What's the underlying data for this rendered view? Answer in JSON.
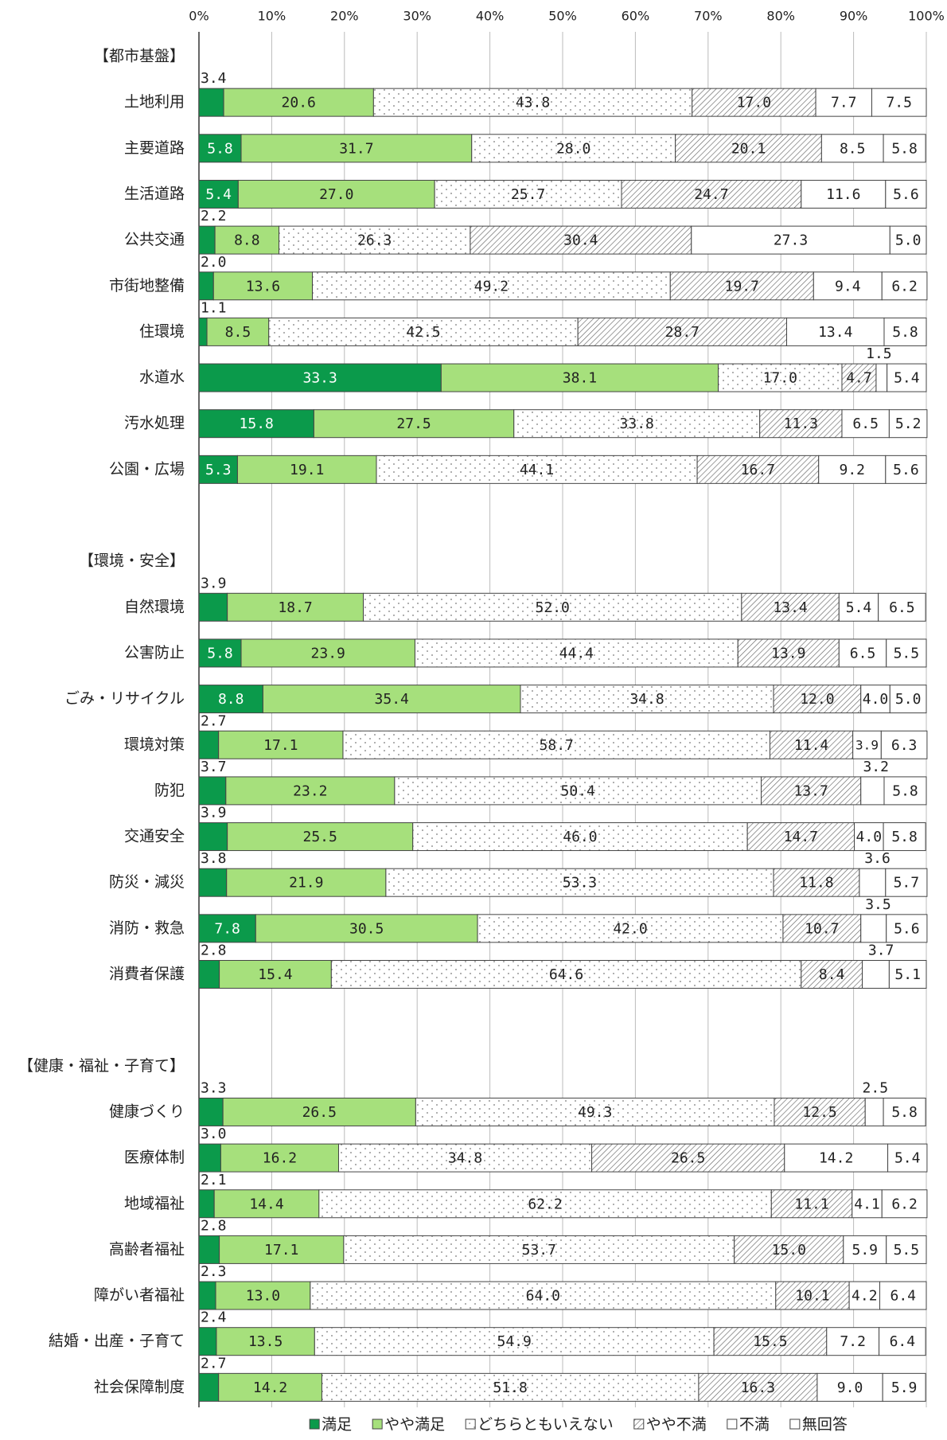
{
  "chart_data": {
    "type": "stacked-bar-horizontal",
    "categories": [
      "【都市基盤】",
      "土地利用",
      "主要道路",
      "生活道路",
      "公共交通",
      "市街地整備",
      "住環境",
      "水道水",
      "汚水処理",
      "公園・広場",
      null,
      "【環境・安全】",
      "自然環境",
      "公害防止",
      "ごみ・リサイクル",
      "環境対策",
      "防犯",
      "交通安全",
      "防災・減災",
      "消防・救急",
      "消費者保護",
      null,
      "【健康・福祉・子育て】",
      "健康づくり",
      "医療体制",
      "地域福祉",
      "高齢者福祉",
      "障がい者福祉",
      "結婚・出産・子育て",
      "社会保障制度"
    ],
    "series": [
      {
        "name": "満足",
        "color": "#0b9a4b",
        "pattern": "solid",
        "values": [
          null,
          3.4,
          5.8,
          5.4,
          2.2,
          2.0,
          1.1,
          33.3,
          15.8,
          5.3,
          null,
          null,
          3.9,
          5.8,
          8.8,
          2.7,
          3.7,
          3.9,
          3.8,
          7.8,
          2.8,
          null,
          null,
          3.3,
          3.0,
          2.1,
          2.8,
          2.3,
          2.4,
          2.7
        ],
        "value_labels": [
          null,
          "3.4",
          "5.8",
          "5.4",
          "2.2",
          "2.0",
          "1.1",
          "33.3",
          "15.8",
          "5.3",
          null,
          null,
          "3.9",
          "5.8",
          "8.8",
          "2.7",
          "3.7",
          "3.9",
          "3.8",
          "7.8",
          "2.8",
          null,
          null,
          "3.3",
          "3.0",
          "2.1",
          "2.8",
          "2.3",
          "2.4",
          "2.7"
        ]
      },
      {
        "name": "やや満足",
        "color": "#a6e07c",
        "pattern": "solid",
        "values": [
          null,
          20.6,
          31.7,
          27.0,
          8.8,
          13.6,
          8.5,
          38.1,
          27.5,
          19.1,
          null,
          null,
          18.7,
          23.9,
          35.4,
          17.1,
          23.2,
          25.5,
          21.9,
          30.5,
          15.4,
          null,
          null,
          26.5,
          16.2,
          14.4,
          17.1,
          13.0,
          13.5,
          14.2
        ],
        "value_labels": [
          null,
          "20.6",
          "31.7",
          "27.0",
          "8.8",
          "13.6",
          "8.5",
          "38.1",
          "27.5",
          "19.1",
          null,
          null,
          "18.7",
          "23.9",
          "35.4",
          "17.1",
          "23.2",
          "25.5",
          "21.9",
          "30.5",
          "15.4",
          null,
          null,
          "26.5",
          "16.2",
          "14.4",
          "17.1",
          "13.0",
          "13.5",
          "14.2"
        ]
      },
      {
        "name": "どちらともいえない",
        "color": "#ffffff",
        "pattern": "dots",
        "values": [
          null,
          43.8,
          28.0,
          25.7,
          26.3,
          49.2,
          42.5,
          17.0,
          33.8,
          44.1,
          null,
          null,
          52.0,
          44.4,
          34.8,
          58.7,
          50.4,
          46.0,
          53.3,
          42.0,
          64.6,
          null,
          null,
          49.3,
          34.8,
          62.2,
          53.7,
          64.0,
          54.9,
          51.8
        ],
        "value_labels": [
          null,
          "43.8",
          "28.0",
          "25.7",
          "26.3",
          "49.2",
          "42.5",
          "17.0",
          "33.8",
          "44.1",
          null,
          null,
          "52.0",
          "44.4",
          "34.8",
          "58.7",
          "50.4",
          "46.0",
          "53.3",
          "42.0",
          "64.6",
          null,
          null,
          "49.3",
          "34.8",
          "62.2",
          "53.7",
          "64.0",
          "54.9",
          "51.8"
        ]
      },
      {
        "name": "やや不満",
        "color": "#ffffff",
        "pattern": "hatch",
        "values": [
          null,
          17.0,
          20.1,
          24.7,
          30.4,
          19.7,
          28.7,
          4.7,
          11.3,
          16.7,
          null,
          null,
          13.4,
          13.9,
          12.0,
          11.4,
          13.7,
          14.7,
          11.8,
          10.7,
          8.4,
          null,
          null,
          12.5,
          26.5,
          11.1,
          15.0,
          10.1,
          15.5,
          16.3
        ],
        "value_labels": [
          null,
          "17.0",
          "20.1",
          "24.7",
          "30.4",
          "19.7",
          "28.7",
          "4.7",
          "11.3",
          "16.7",
          null,
          null,
          "13.4",
          "13.9",
          "12.0",
          "11.4",
          "13.7",
          "14.7",
          "11.8",
          "10.7",
          "8.4",
          null,
          null,
          "12.5",
          "26.5",
          "11.1",
          "15.0",
          "10.1",
          "15.5",
          "16.3"
        ]
      },
      {
        "name": "不満",
        "color": "#ffffff",
        "pattern": "solid",
        "values": [
          null,
          7.7,
          8.5,
          11.6,
          27.3,
          9.4,
          13.4,
          1.5,
          6.5,
          9.2,
          null,
          null,
          5.4,
          6.5,
          4.0,
          3.9,
          3.2,
          4.0,
          3.6,
          3.5,
          3.7,
          null,
          null,
          2.5,
          14.2,
          4.1,
          5.9,
          4.2,
          7.2,
          9.0
        ],
        "value_labels": [
          null,
          "7.7",
          "8.5",
          "11.6",
          "27.3",
          "9.4",
          "13.4",
          "1.5",
          "6.5",
          "9.2",
          null,
          null,
          "5.4",
          "6.5",
          "4.0",
          "3.9",
          "3.2",
          "4.0",
          "3.6",
          "3.5",
          "3.7",
          null,
          null,
          "2.5",
          "14.2",
          "4.1",
          "5.9",
          "4.2",
          "7.2",
          "9.0"
        ]
      },
      {
        "name": "無回答",
        "color": "#ffffff",
        "pattern": "solid",
        "values": [
          null,
          7.5,
          5.8,
          5.6,
          5.0,
          6.2,
          5.8,
          5.4,
          5.2,
          5.6,
          null,
          null,
          6.5,
          5.5,
          5.0,
          6.3,
          5.8,
          5.8,
          5.7,
          5.6,
          5.1,
          null,
          null,
          5.8,
          5.4,
          6.2,
          5.5,
          6.4,
          6.4,
          5.9
        ],
        "value_labels": [
          null,
          "7.5",
          "5.8",
          "5.6",
          "5.0",
          "6.2",
          "5.8",
          "5.4",
          "5.2",
          "5.6",
          null,
          null,
          "6.5",
          "5.5",
          "5.0",
          "6.3",
          "5.8",
          "5.8",
          "5.7",
          "5.6",
          "5.1",
          null,
          null,
          "5.8",
          "5.4",
          "6.2",
          "5.5",
          "6.4",
          "6.4",
          "5.9"
        ]
      }
    ],
    "xlim": [
      0,
      100
    ],
    "xticks": [
      {
        "value": 0,
        "label": "0%"
      },
      {
        "value": 10,
        "label": "10%"
      },
      {
        "value": 20,
        "label": "20%"
      },
      {
        "value": 30,
        "label": "30%"
      },
      {
        "value": 40,
        "label": "40%"
      },
      {
        "value": 50,
        "label": "50%"
      },
      {
        "value": 60,
        "label": "60%"
      },
      {
        "value": 70,
        "label": "70%"
      },
      {
        "value": 80,
        "label": "80%"
      },
      {
        "value": 90,
        "label": "90%"
      },
      {
        "value": 100,
        "label": "100%"
      }
    ],
    "grid": true,
    "legend": "bottom"
  }
}
